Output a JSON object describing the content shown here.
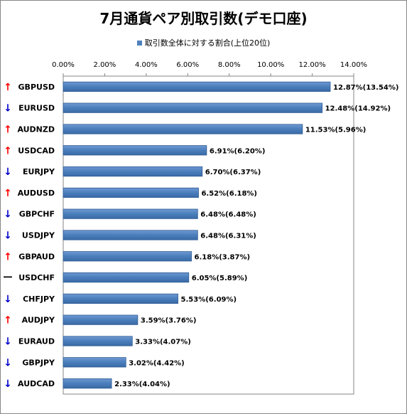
{
  "chart_data": {
    "type": "bar",
    "orientation": "horizontal",
    "title": "7月通貨ペア別取引数(デモ口座)",
    "legend": {
      "position": "top",
      "entries": [
        "取引数全体に対する割合(上位20位)"
      ]
    },
    "xlim": [
      0,
      14
    ],
    "x_ticks": [
      "0.00%",
      "2.00%",
      "4.00%",
      "6.00%",
      "8.00%",
      "10.00%",
      "12.00%",
      "14.00%"
    ],
    "grid": false,
    "series": [
      {
        "name": "取引数全体に対する割合(上位20位)",
        "color": "#4f81bd"
      }
    ],
    "categories": [
      "GBPUSD",
      "EURUSD",
      "AUDNZD",
      "USDCAD",
      "EURJPY",
      "AUDUSD",
      "GBPCHF",
      "USDJPY",
      "GBPAUD",
      "USDCHF",
      "CHFJPY",
      "AUDJPY",
      "EURAUD",
      "GBPJPY",
      "AUDCAD"
    ],
    "trend_marks": [
      "↑",
      "↓",
      "↑",
      "↑",
      "↓",
      "↑",
      "↓",
      "↓",
      "↑",
      "ー",
      "↓",
      "↑",
      "↓",
      "↓",
      "↓"
    ],
    "trend_colors": [
      "#ff0000",
      "#0000cc",
      "#ff0000",
      "#ff0000",
      "#0000cc",
      "#ff0000",
      "#0000cc",
      "#0000cc",
      "#ff0000",
      "#000000",
      "#0000cc",
      "#ff0000",
      "#0000cc",
      "#0000cc",
      "#0000cc"
    ],
    "values": [
      12.87,
      12.48,
      11.53,
      6.91,
      6.7,
      6.52,
      6.48,
      6.48,
      6.18,
      6.05,
      5.53,
      3.59,
      3.33,
      3.02,
      2.33
    ],
    "data_labels": [
      "12.87%(13.54%)",
      "12.48%(14.92%)",
      "11.53%(5.96%)",
      "6.91%(6.20%)",
      "6.70%(6.37%)",
      "6.52%(6.18%)",
      "6.48%(6.48%)",
      "6.48%(6.31%)",
      "6.18%(3.87%)",
      "6.05%(5.89%)",
      "5.53%(6.09%)",
      "3.59%(3.76%)",
      "3.33%(4.07%)",
      "3.02%(4.42%)",
      "2.33%(4.04%)"
    ]
  }
}
